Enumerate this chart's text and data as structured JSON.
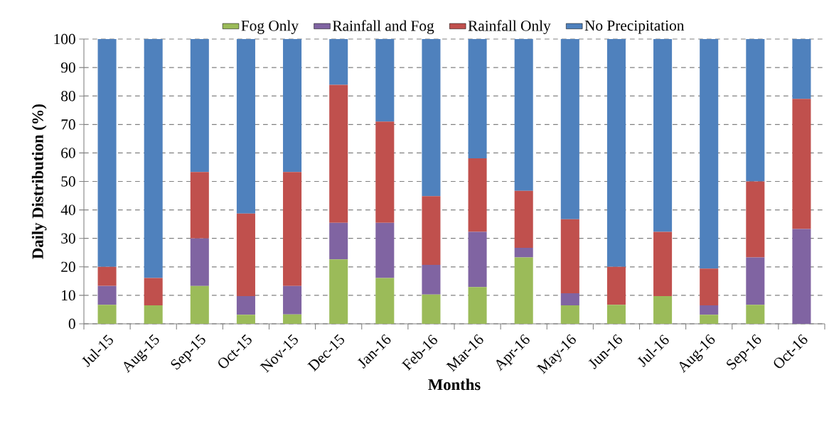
{
  "chart_data": {
    "type": "bar",
    "stacked": true,
    "xlabel": "Months",
    "ylabel": "Daily Distribution  (%)",
    "categories": [
      "Jul-15",
      "Aug-15",
      "Sep-15",
      "Oct-15",
      "Nov-15",
      "Dec-15",
      "Jan-16",
      "Feb-16",
      "Mar-16",
      "Apr-16",
      "May-16",
      "Jun-16",
      "Jul-16",
      "Aug-16",
      "Sep-16",
      "Oct-16"
    ],
    "series": [
      {
        "name": "Fog Only",
        "color": "#9bbb59",
        "values": [
          6.7,
          6.5,
          13.3,
          3.2,
          3.3,
          22.6,
          16.1,
          10.3,
          12.9,
          23.3,
          6.5,
          6.7,
          9.7,
          3.2,
          6.7,
          0
        ]
      },
      {
        "name": "Rainfall and Fog",
        "color": "#8064a2",
        "values": [
          6.6,
          0,
          16.7,
          6.5,
          10,
          12.9,
          19.4,
          10.4,
          19.4,
          3.4,
          4.2,
          0,
          0,
          3.3,
          16.6,
          33.3
        ]
      },
      {
        "name": "Rainfall Only",
        "color": "#c0504d",
        "values": [
          6.7,
          9.6,
          23.3,
          29,
          40,
          48.4,
          35.5,
          24.1,
          25.8,
          20,
          26,
          13.3,
          22.6,
          12.9,
          26.7,
          45.7
        ]
      },
      {
        "name": "No Precipitation",
        "color": "#4f81bd",
        "values": [
          80,
          83.9,
          46.7,
          61.3,
          46.7,
          16.1,
          29,
          55.2,
          41.9,
          53.3,
          63.3,
          80,
          67.7,
          80.6,
          50,
          21
        ]
      }
    ],
    "ylim": [
      0,
      100
    ],
    "yticks": [
      0,
      10,
      20,
      30,
      40,
      50,
      60,
      70,
      80,
      90,
      100
    ],
    "grid": "y",
    "legend": "top"
  }
}
